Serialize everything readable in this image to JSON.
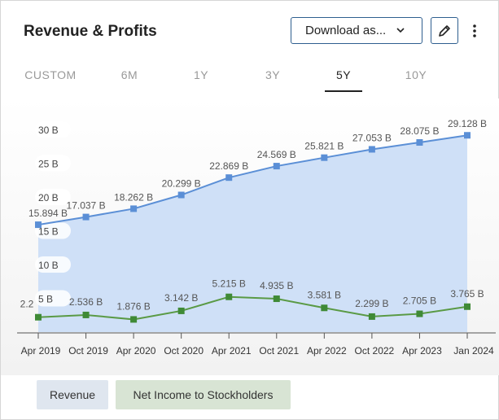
{
  "header": {
    "title": "Revenue & Profits",
    "download_label": "Download as...",
    "edit_icon": "pencil-icon",
    "more_icon": "kebab-menu-icon"
  },
  "tabs": [
    {
      "label": "CUSTOM",
      "active": false
    },
    {
      "label": "6M",
      "active": false
    },
    {
      "label": "1Y",
      "active": false
    },
    {
      "label": "3Y",
      "active": false
    },
    {
      "label": "5Y",
      "active": true
    },
    {
      "label": "10Y",
      "active": false
    }
  ],
  "legend": {
    "revenue_label": "Revenue",
    "net_income_label": "Net Income to Stockholders"
  },
  "colors": {
    "revenue_line": "#5b8fd6",
    "revenue_fill": "#cfe0f7",
    "net_income_line": "#5a9a45",
    "net_income_marker": "#3f8a36"
  },
  "chart_data": {
    "type": "area",
    "x_ticks": [
      "Apr 2019",
      "Oct 2019",
      "Apr 2020",
      "Oct 2020",
      "Apr 2021",
      "Oct 2021",
      "Apr 2022",
      "Oct 2022",
      "Apr 2023",
      "Jan 2024"
    ],
    "y_ticks": [
      "5 B",
      "10 B",
      "15 B",
      "20 B",
      "25 B",
      "30 B"
    ],
    "ylim": [
      0,
      32
    ],
    "grid": false,
    "series": [
      {
        "name": "Revenue",
        "points": [
          {
            "x": "Apr 2019",
            "y": 15.894,
            "label": "15.894 B"
          },
          {
            "x": "Oct 2019",
            "y": 17.037,
            "label": "17.037 B"
          },
          {
            "x": "Apr 2020",
            "y": 18.262,
            "label": "18.262 B"
          },
          {
            "x": "Oct 2020",
            "y": 20.299,
            "label": "20.299 B"
          },
          {
            "x": "Apr 2021",
            "y": 22.869,
            "label": "22.869 B"
          },
          {
            "x": "Oct 2021",
            "y": 24.569,
            "label": "24.569 B"
          },
          {
            "x": "Apr 2022",
            "y": 25.821,
            "label": "25.821 B"
          },
          {
            "x": "Oct 2022",
            "y": 27.053,
            "label": "27.053 B"
          },
          {
            "x": "Apr 2023",
            "y": 28.075,
            "label": "28.075 B"
          },
          {
            "x": "Jan 2024",
            "y": 29.128,
            "label": "29.128 B"
          }
        ]
      },
      {
        "name": "Net Income to Stockholders",
        "points": [
          {
            "x": "Apr 2019",
            "y": 2.2,
            "label": "2.2"
          },
          {
            "x": "Oct 2019",
            "y": 2.536,
            "label": "2.536 B"
          },
          {
            "x": "Apr 2020",
            "y": 1.876,
            "label": "1.876 B"
          },
          {
            "x": "Oct 2020",
            "y": 3.142,
            "label": "3.142 B"
          },
          {
            "x": "Apr 2021",
            "y": 5.215,
            "label": "5.215 B"
          },
          {
            "x": "Oct 2021",
            "y": 4.935,
            "label": "4.935 B"
          },
          {
            "x": "Apr 2022",
            "y": 3.581,
            "label": "3.581 B"
          },
          {
            "x": "Oct 2022",
            "y": 2.299,
            "label": "2.299 B"
          },
          {
            "x": "Apr 2023",
            "y": 2.705,
            "label": "2.705 B"
          },
          {
            "x": "Jan 2024",
            "y": 3.765,
            "label": "3.765 B"
          }
        ]
      }
    ]
  }
}
